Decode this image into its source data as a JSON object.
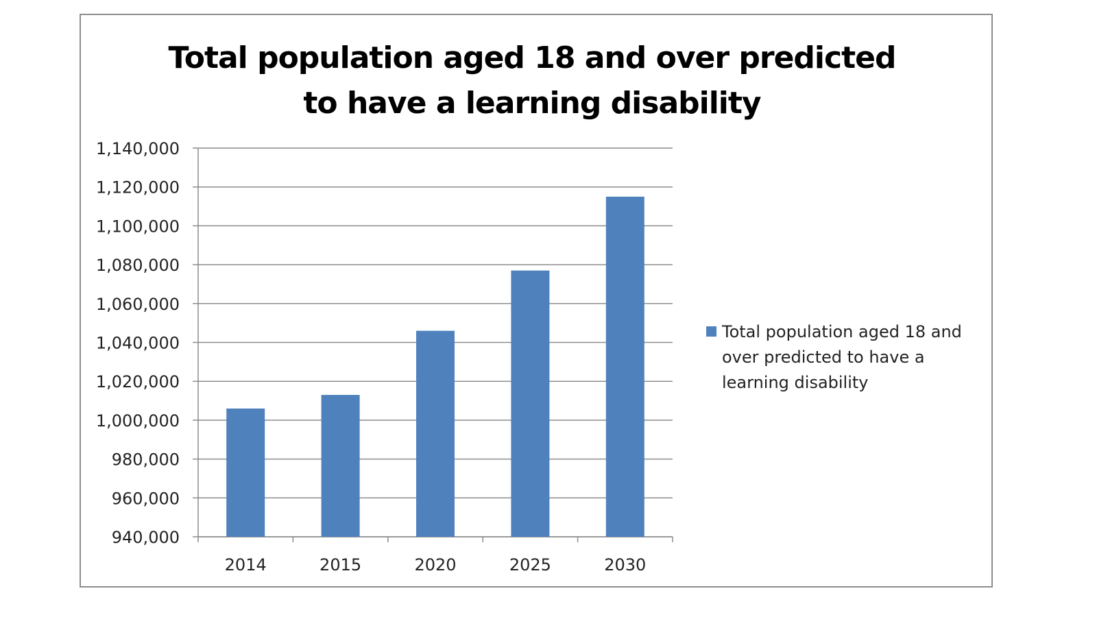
{
  "chart_data": {
    "type": "bar",
    "title": "Total population aged 18 and over predicted to have a learning disability",
    "title_lines": [
      "Total population aged 18 and over predicted",
      "to have a learning disability"
    ],
    "categories": [
      "2014",
      "2015",
      "2020",
      "2025",
      "2030"
    ],
    "series": [
      {
        "name": "Total population aged 18 and over predicted to have a learning disability",
        "values": [
          1006000,
          1013000,
          1046000,
          1077000,
          1115000
        ],
        "color": "#4f81bd"
      }
    ],
    "xlabel": "",
    "ylabel": "",
    "ylim": [
      940000,
      1140000
    ],
    "yticks": [
      "940,000",
      "960,000",
      "980,000",
      "1,000,000",
      "1,020,000",
      "1,040,000",
      "1,060,000",
      "1,080,000",
      "1,100,000",
      "1,120,000",
      "1,140,000"
    ],
    "grid": true,
    "legend_position": "right"
  }
}
